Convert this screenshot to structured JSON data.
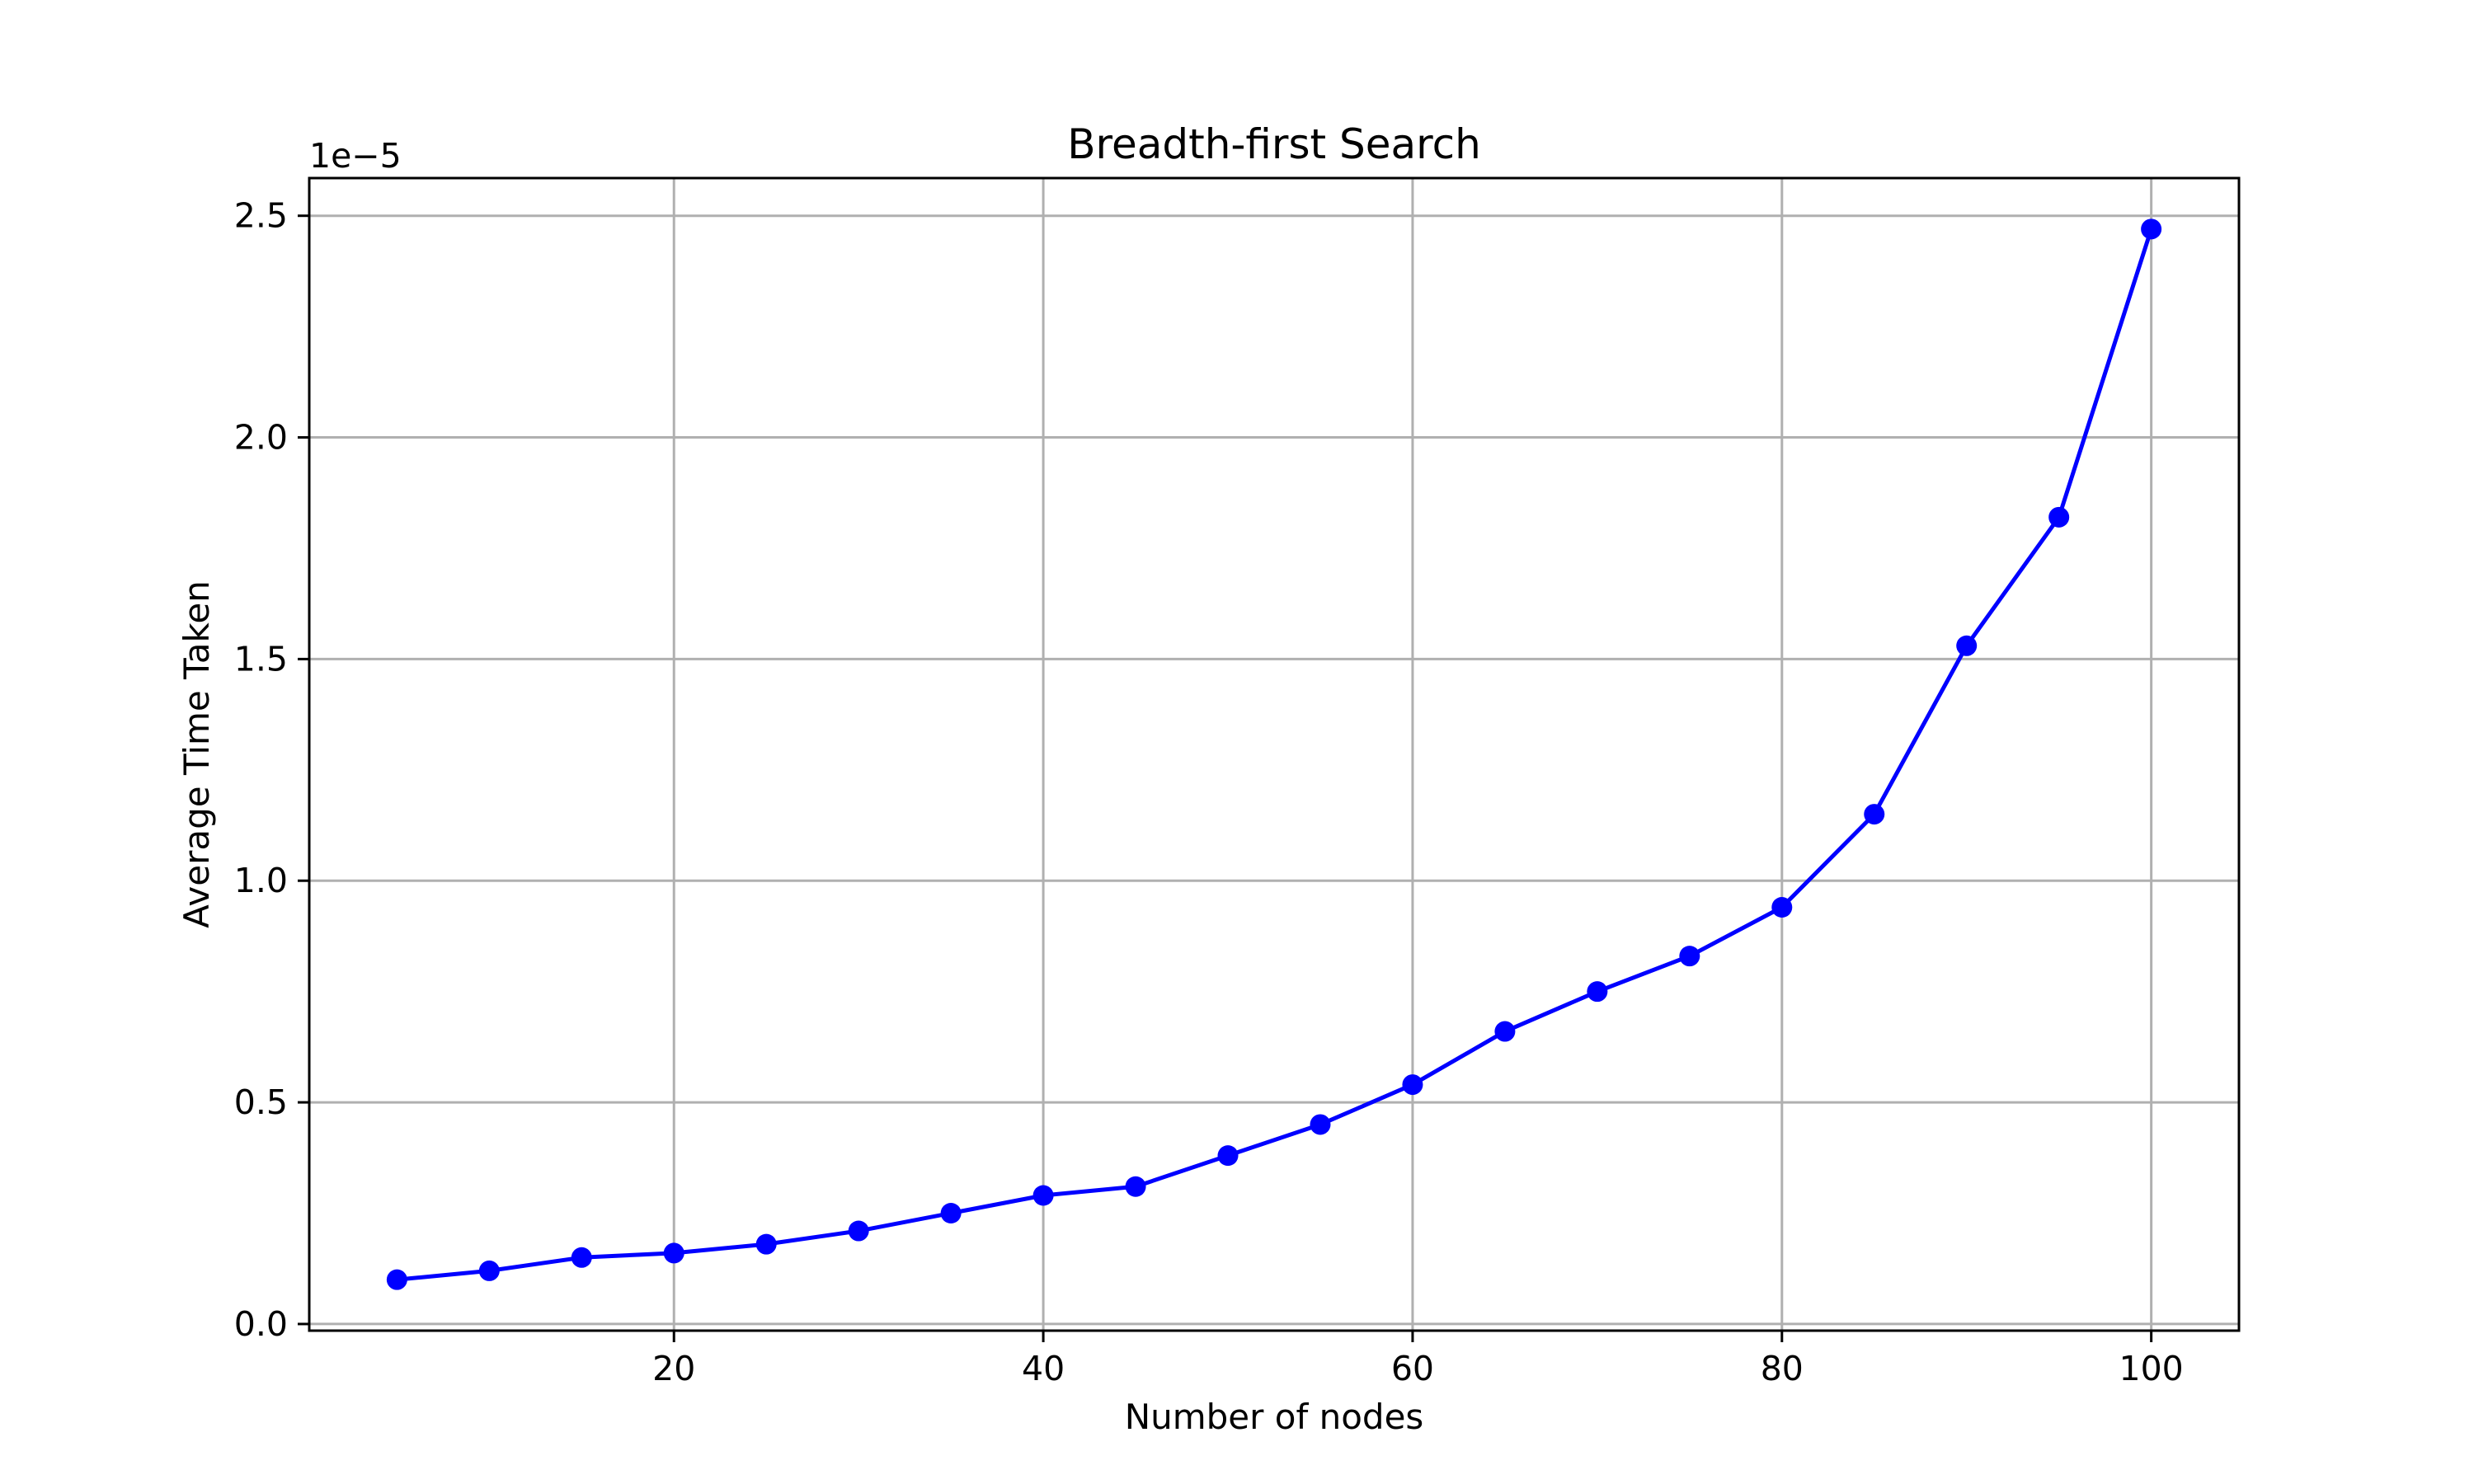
{
  "chart_data": {
    "type": "line",
    "title": "Breadth-first Search",
    "xlabel": "Number of nodes",
    "ylabel": "Average Time Taken",
    "y_offset_text": "1e−5",
    "y_scale": 1e-05,
    "xlim": [
      0.25,
      104.75
    ],
    "ylim": [
      -0.015,
      2.585
    ],
    "xticks": [
      20,
      40,
      60,
      80,
      100
    ],
    "xtick_labels": [
      "20",
      "40",
      "60",
      "80",
      "100"
    ],
    "yticks": [
      0.0,
      0.5,
      1.0,
      1.5,
      2.0,
      2.5
    ],
    "ytick_labels": [
      "0.0",
      "0.5",
      "1.0",
      "1.5",
      "2.0",
      "2.5"
    ],
    "grid": true,
    "line_color": "#0000ff",
    "marker": "circle",
    "series": [
      {
        "x": [
          5,
          10,
          15,
          20,
          25,
          30,
          35,
          40,
          45,
          50,
          55,
          60,
          65,
          70,
          75,
          80,
          85,
          90,
          95,
          100
        ],
        "y": [
          0.1,
          0.12,
          0.15,
          0.16,
          0.18,
          0.21,
          0.25,
          0.29,
          0.31,
          0.38,
          0.45,
          0.54,
          0.66,
          0.75,
          0.83,
          0.94,
          1.15,
          1.53,
          1.82,
          2.47
        ]
      }
    ]
  }
}
